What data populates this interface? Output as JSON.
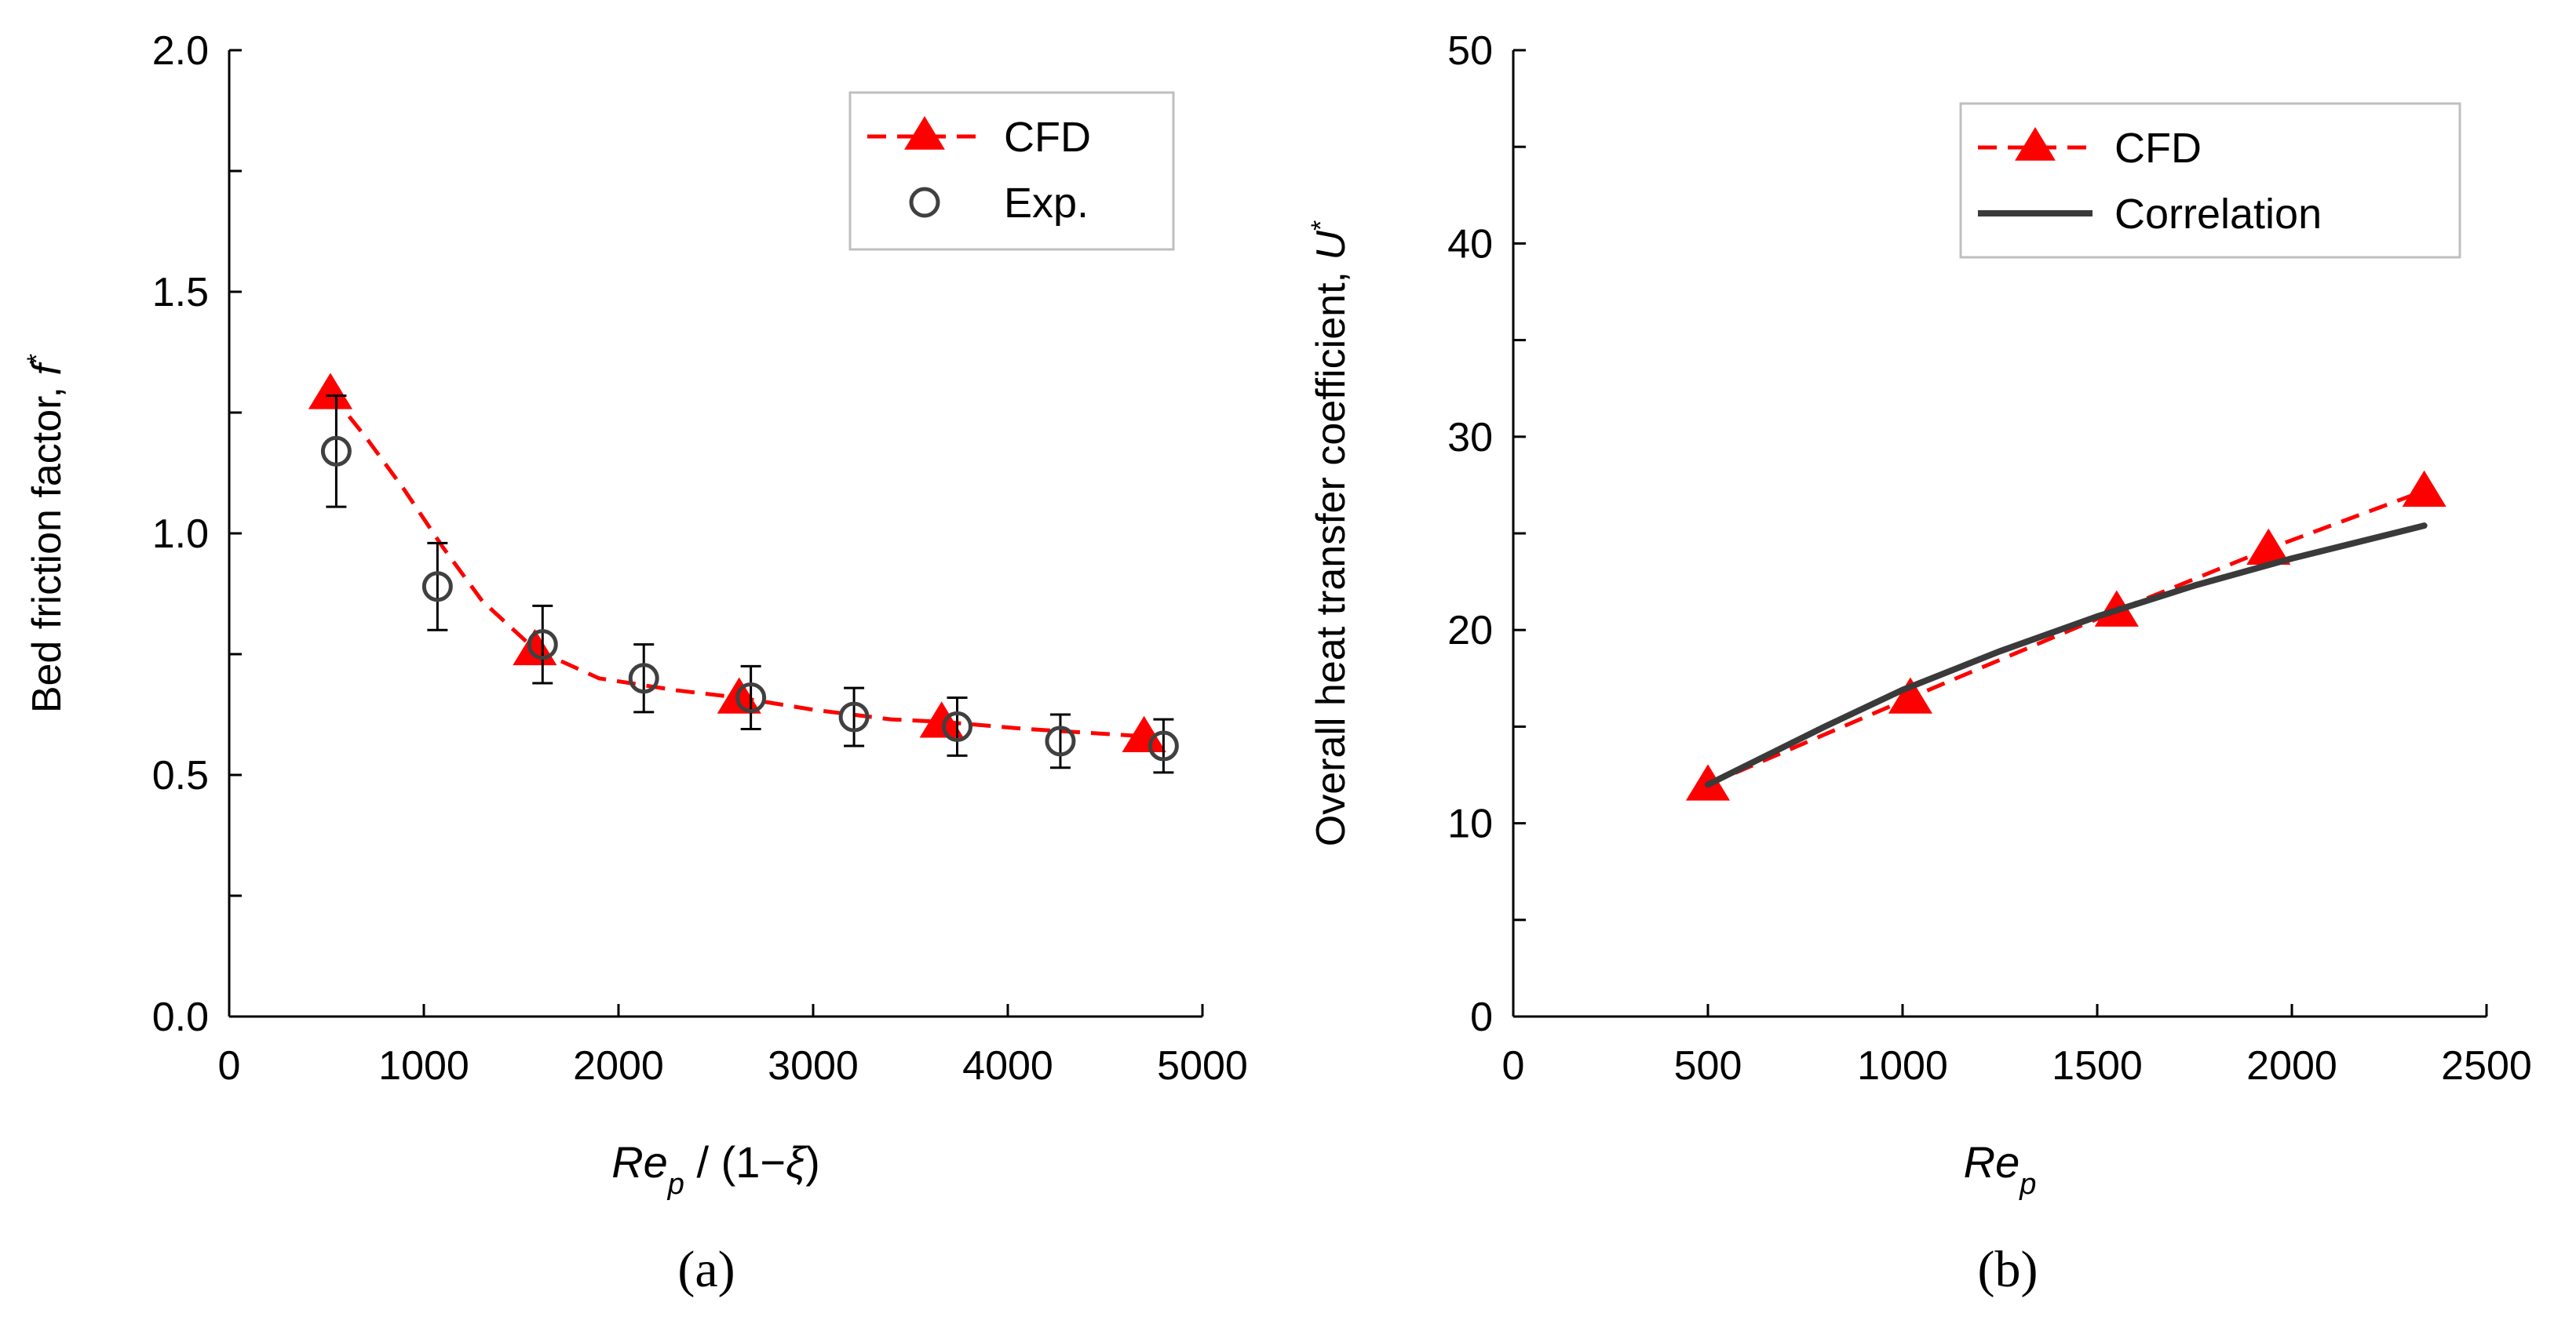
{
  "colors": {
    "cfd": "#ff0000",
    "exp": "#404040",
    "correlation": "#3a3a3a",
    "axis": "#000000",
    "legend_border": "#bfbfbf"
  },
  "chart_data": [
    {
      "type": "line",
      "panel_label": "(a)",
      "ylabel": {
        "main": "Bed friction factor, ",
        "var": "f",
        "sup": "*"
      },
      "xlabel": {
        "var": "Re",
        "sub": "p",
        "rest": " / (1−",
        "greek": "ξ",
        "close": ")"
      },
      "xlim": [
        0,
        5000
      ],
      "ylim": [
        0,
        2.0
      ],
      "xticks": [
        0,
        1000,
        2000,
        3000,
        4000,
        5000
      ],
      "xtick_labels": [
        "0",
        "1000",
        "2000",
        "3000",
        "4000",
        "5000"
      ],
      "yticks": [
        0,
        0.5,
        1.0,
        1.5,
        2.0
      ],
      "ytick_labels": [
        "0.0",
        "0.5",
        "1.0",
        "1.5",
        "2.0"
      ],
      "grid": false,
      "legend_position": "top-right",
      "series": [
        {
          "name": "CFD",
          "style": "dashed-line-triangle",
          "x": [
            520,
            1570,
            2620,
            3660,
            4700
          ],
          "y": [
            1.29,
            0.76,
            0.66,
            0.61,
            0.58
          ],
          "curve_x": [
            520,
            700,
            900,
            1100,
            1300,
            1570,
            1900,
            2300,
            2620,
            3000,
            3400,
            3660,
            4100,
            4700
          ],
          "curve_y": [
            1.29,
            1.2,
            1.09,
            0.97,
            0.86,
            0.76,
            0.7,
            0.675,
            0.66,
            0.635,
            0.615,
            0.61,
            0.595,
            0.58
          ]
        },
        {
          "name": "Exp.",
          "style": "open-circle-errorbar",
          "x": [
            550,
            1070,
            1610,
            2130,
            2680,
            3210,
            3740,
            4270,
            4800
          ],
          "y": [
            1.17,
            0.89,
            0.77,
            0.7,
            0.66,
            0.62,
            0.6,
            0.57,
            0.56
          ],
          "err": [
            0.115,
            0.09,
            0.08,
            0.07,
            0.065,
            0.06,
            0.06,
            0.055,
            0.055
          ]
        }
      ]
    },
    {
      "type": "line",
      "panel_label": "(b)",
      "ylabel": {
        "main": "Overall heat transfer coefficient, ",
        "var": "U",
        "sup": "*"
      },
      "xlabel": {
        "var": "Re",
        "sub": "p"
      },
      "xlim": [
        0,
        2500
      ],
      "ylim": [
        0,
        50
      ],
      "xticks": [
        0,
        500,
        1000,
        1500,
        2000,
        2500
      ],
      "xtick_labels": [
        "0",
        "500",
        "1000",
        "1500",
        "2000",
        "2500"
      ],
      "yticks": [
        0,
        10,
        20,
        30,
        40,
        50
      ],
      "ytick_labels": [
        "0",
        "10",
        "20",
        "30",
        "40",
        "50"
      ],
      "grid": false,
      "legend_position": "top-right",
      "series": [
        {
          "name": "CFD",
          "style": "dashed-line-triangle",
          "x": [
            500,
            1020,
            1550,
            1940,
            2340
          ],
          "y": [
            12.0,
            16.5,
            21.0,
            24.2,
            27.2
          ]
        },
        {
          "name": "Correlation",
          "style": "solid-line",
          "x": [
            500,
            800,
            1000,
            1250,
            1500,
            1750,
            2000,
            2340
          ],
          "y": [
            12.0,
            15.0,
            16.9,
            18.9,
            20.7,
            22.3,
            23.7,
            25.4
          ]
        }
      ]
    }
  ]
}
